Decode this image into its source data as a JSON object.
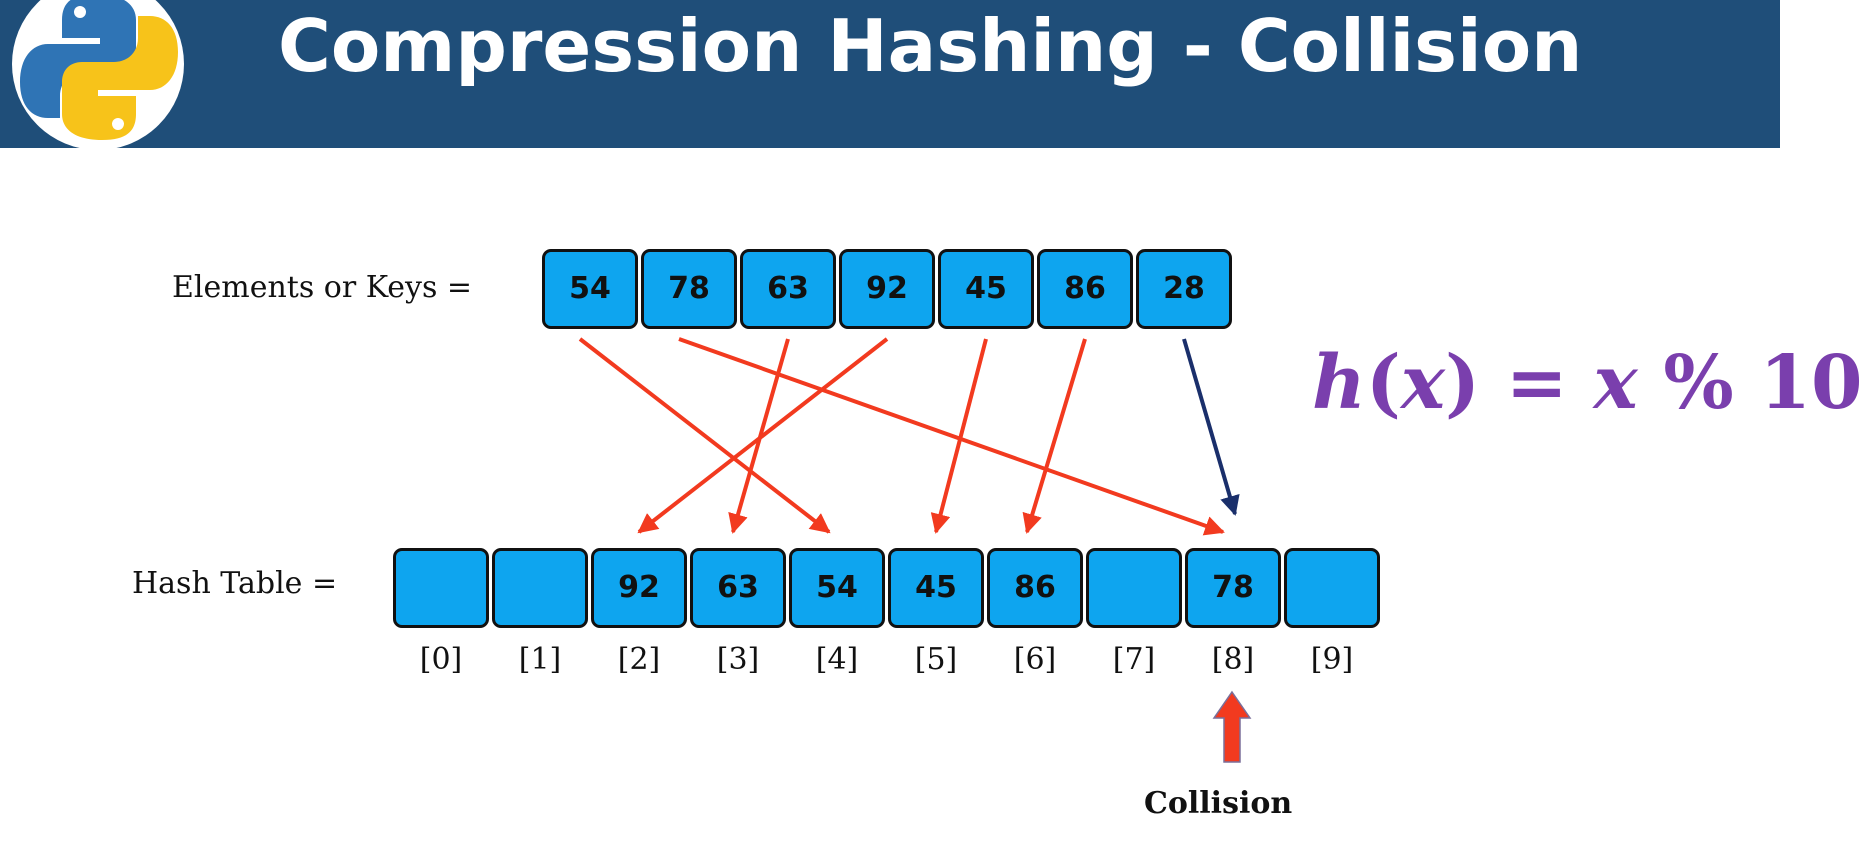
{
  "slide": {
    "title": "Compression Hashing - Collision"
  },
  "logo": {
    "icon": "python-logo-icon"
  },
  "keys": {
    "label": "Elements or Keys =",
    "values": [
      "54",
      "78",
      "63",
      "92",
      "45",
      "86",
      "28"
    ]
  },
  "hash_table": {
    "label": "Hash Table =",
    "slots": [
      "",
      "",
      "92",
      "63",
      "54",
      "45",
      "86",
      "",
      "78",
      ""
    ],
    "indices": [
      "[0]",
      "[1]",
      "[2]",
      "[3]",
      "[4]",
      "[5]",
      "[6]",
      "[7]",
      "[8]",
      "[9]"
    ]
  },
  "mapping": [
    {
      "from_key": 0,
      "to_slot": 4
    },
    {
      "from_key": 1,
      "to_slot": 8
    },
    {
      "from_key": 2,
      "to_slot": 3
    },
    {
      "from_key": 3,
      "to_slot": 2
    },
    {
      "from_key": 4,
      "to_slot": 5
    },
    {
      "from_key": 5,
      "to_slot": 6
    },
    {
      "from_key": 6,
      "to_slot": 8,
      "highlight": true
    }
  ],
  "formula": {
    "h": "h",
    "open": "(",
    "var": "x",
    "close": ")",
    "eq": " = ",
    "var2": "x",
    "rest": " % 10"
  },
  "collision": {
    "label": "Collision",
    "slot_index": 8
  },
  "colors": {
    "header": "#1f4e79",
    "box_fill": "#0ea5ef",
    "arrow_red": "#f23a1f",
    "arrow_navy": "#1a2f6b",
    "formula": "#7a3fad"
  }
}
